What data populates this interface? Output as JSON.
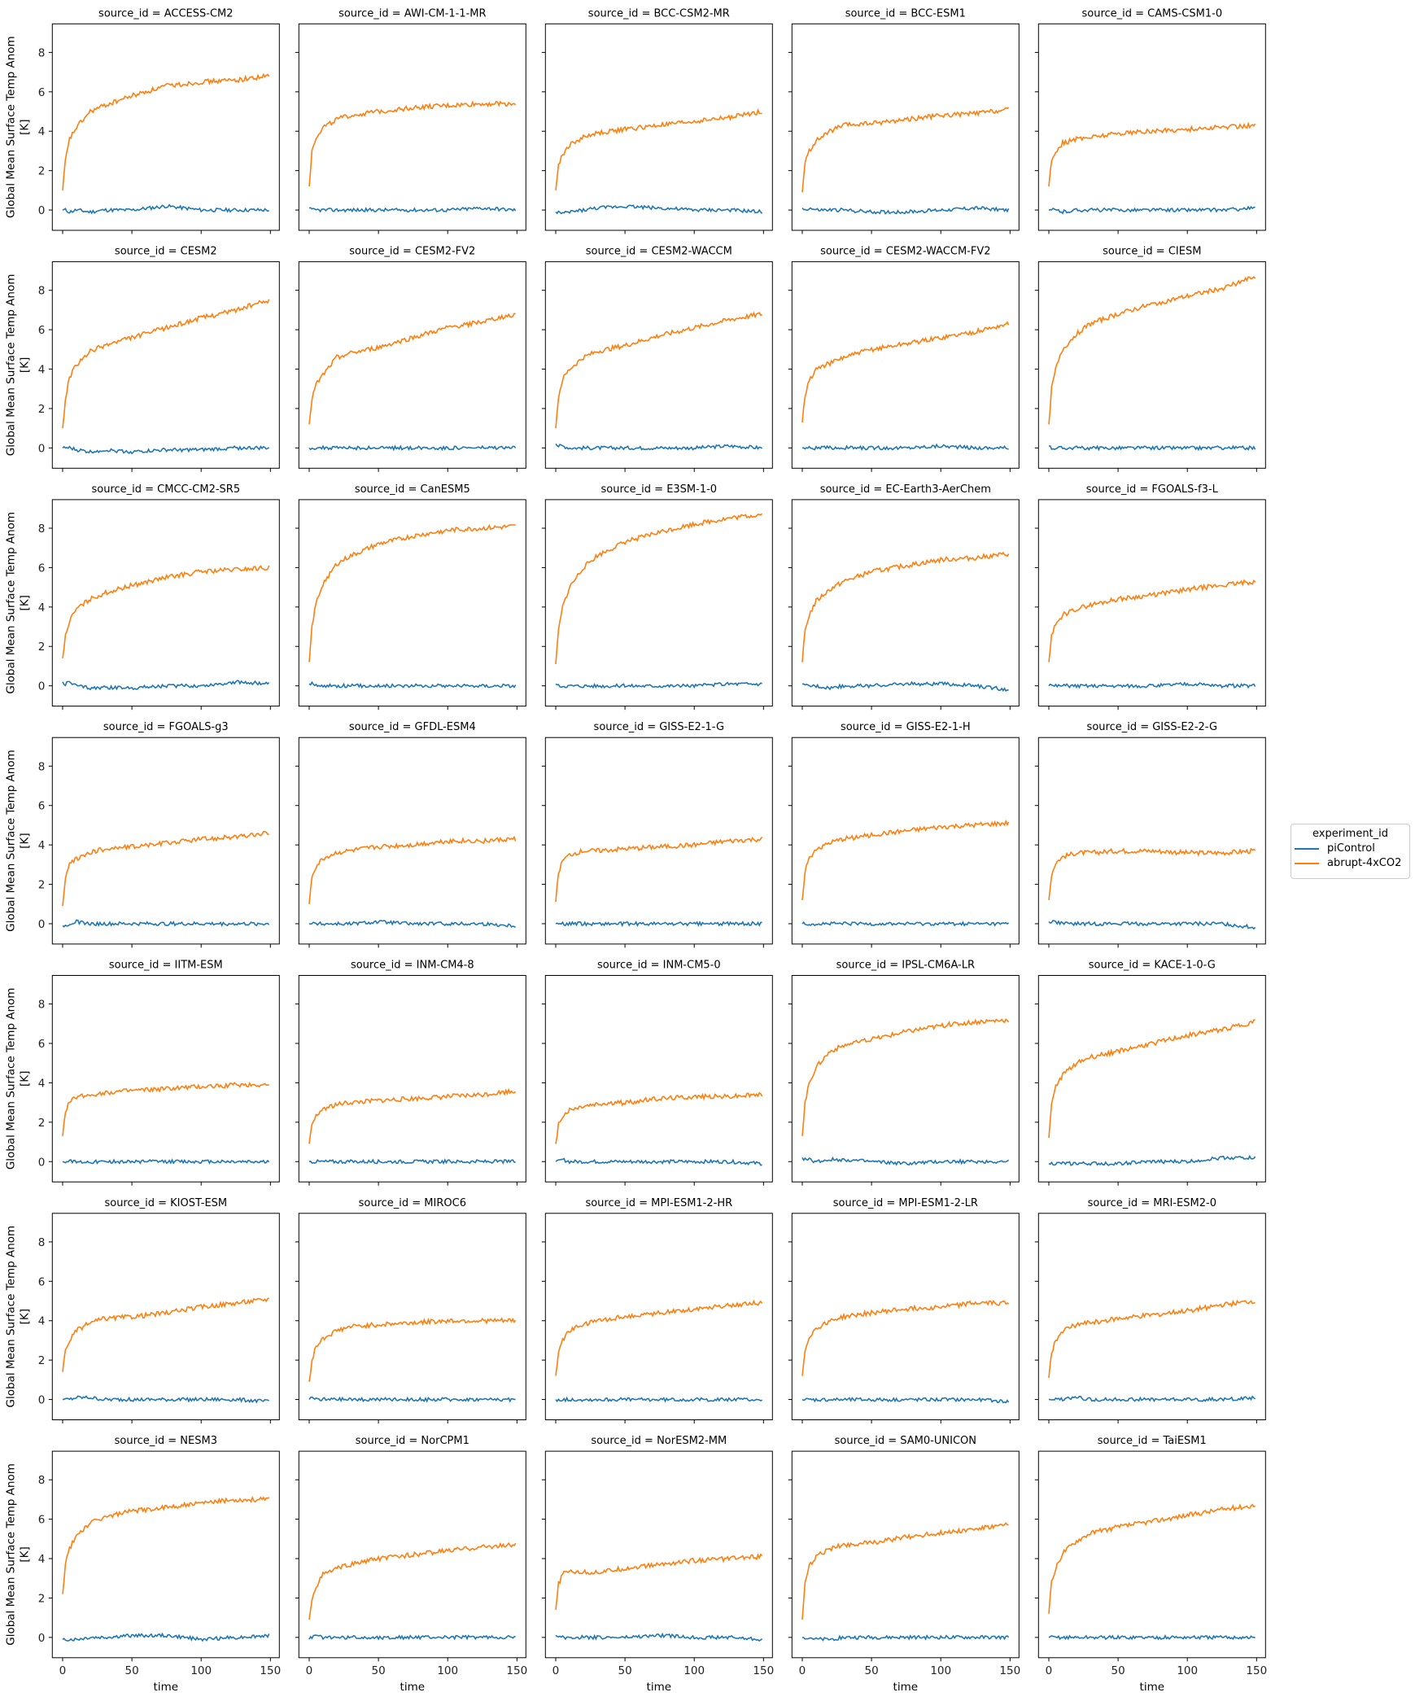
{
  "chart_data": {
    "type": "line",
    "layout": "facet-grid 7 rows x 5 columns, shared axes",
    "facet_label_prefix": "source_id = ",
    "xlabel": "time",
    "ylabel": "Global Mean Surface Temp Anom\n[K]",
    "xlim": [
      -7.45,
      156.45
    ],
    "ylim": [
      -1.03,
      9.45
    ],
    "xticks": [
      0,
      50,
      100,
      150
    ],
    "yticks": [
      0,
      2,
      4,
      6,
      8
    ],
    "grid": false,
    "legend": {
      "title": "experiment_id",
      "placement": "right",
      "entries": [
        "piControl",
        "abrupt-4xCO2"
      ]
    },
    "colors": {
      "piControl": "#1f77b4",
      "abrupt-4xCO2": "#ff7f0e"
    },
    "x": [
      0,
      2,
      5,
      10,
      20,
      30,
      50,
      75,
      100,
      125,
      149
    ],
    "panels": [
      {
        "source_id": "ACCESS-CM2",
        "abrupt-4xCO2": [
          1.0,
          2.5,
          3.6,
          4.2,
          5.0,
          5.3,
          5.8,
          6.3,
          6.5,
          6.6,
          6.8
        ],
        "piControl": [
          0,
          0,
          -0.1,
          0,
          -0.1,
          0,
          0,
          0.2,
          0,
          0,
          0
        ]
      },
      {
        "source_id": "AWI-CM-1-1-MR",
        "abrupt-4xCO2": [
          1.2,
          3.0,
          3.7,
          4.2,
          4.6,
          4.8,
          5.0,
          5.2,
          5.3,
          5.4,
          5.4
        ],
        "piControl": [
          0.1,
          0,
          0,
          0,
          0,
          0,
          0,
          0,
          0,
          0.1,
          0
        ]
      },
      {
        "source_id": "BCC-CSM2-MR",
        "abrupt-4xCO2": [
          1.0,
          2.3,
          2.8,
          3.3,
          3.7,
          3.9,
          4.1,
          4.3,
          4.5,
          4.7,
          5.0
        ],
        "piControl": [
          -0.1,
          -0.1,
          -0.2,
          -0.1,
          0,
          0.1,
          0.2,
          0.1,
          0,
          0,
          -0.1
        ]
      },
      {
        "source_id": "BCC-ESM1",
        "abrupt-4xCO2": [
          0.9,
          2.4,
          3.0,
          3.5,
          4.0,
          4.3,
          4.4,
          4.6,
          4.8,
          4.9,
          5.1
        ],
        "piControl": [
          0.1,
          0,
          0.1,
          0,
          0,
          0,
          -0.1,
          -0.1,
          0,
          0.1,
          0
        ]
      },
      {
        "source_id": "CAMS-CSM1-0",
        "abrupt-4xCO2": [
          1.2,
          2.5,
          3.0,
          3.4,
          3.6,
          3.7,
          3.9,
          4.0,
          4.1,
          4.2,
          4.3
        ],
        "piControl": [
          0,
          0,
          0,
          -0.1,
          0,
          0,
          0,
          0,
          0,
          0,
          0.1
        ]
      },
      {
        "source_id": "CESM2",
        "abrupt-4xCO2": [
          1.0,
          2.5,
          3.6,
          4.2,
          4.9,
          5.2,
          5.6,
          6.1,
          6.6,
          7.0,
          7.5
        ],
        "piControl": [
          0,
          0,
          0,
          -0.1,
          -0.2,
          -0.1,
          -0.2,
          -0.1,
          -0.1,
          0,
          0
        ]
      },
      {
        "source_id": "CESM2-FV2",
        "abrupt-4xCO2": [
          1.2,
          2.5,
          3.2,
          3.7,
          4.6,
          4.8,
          5.1,
          5.6,
          6.1,
          6.4,
          6.8
        ],
        "piControl": [
          0,
          0,
          0,
          0,
          0,
          0,
          0,
          0,
          0,
          0,
          0
        ]
      },
      {
        "source_id": "CESM2-WACCM",
        "abrupt-4xCO2": [
          1.0,
          2.6,
          3.5,
          4.0,
          4.6,
          4.9,
          5.2,
          5.7,
          6.1,
          6.5,
          6.8
        ],
        "piControl": [
          0.2,
          0.1,
          0.1,
          0,
          0,
          0,
          0,
          0,
          0,
          0.1,
          0
        ]
      },
      {
        "source_id": "CESM2-WACCM-FV2",
        "abrupt-4xCO2": [
          1.3,
          2.7,
          3.4,
          4.0,
          4.3,
          4.6,
          5.0,
          5.3,
          5.6,
          5.9,
          6.3
        ],
        "piControl": [
          0,
          0,
          0,
          0,
          0,
          0,
          0,
          0,
          0.1,
          0,
          0
        ]
      },
      {
        "source_id": "CIESM",
        "abrupt-4xCO2": [
          1.2,
          3.0,
          4.0,
          5.0,
          5.8,
          6.3,
          6.8,
          7.3,
          7.7,
          8.1,
          8.7
        ],
        "piControl": [
          0.1,
          0,
          0,
          0,
          0,
          0,
          0,
          0,
          0,
          0,
          0
        ]
      },
      {
        "source_id": "CMCC-CM2-SR5",
        "abrupt-4xCO2": [
          1.4,
          2.5,
          3.3,
          3.9,
          4.4,
          4.7,
          5.1,
          5.5,
          5.8,
          5.9,
          6.0
        ],
        "piControl": [
          0.2,
          0.1,
          0.2,
          0,
          -0.1,
          -0.1,
          -0.1,
          0,
          0,
          0.2,
          0.1
        ]
      },
      {
        "source_id": "CanESM5",
        "abrupt-4xCO2": [
          1.2,
          3.0,
          4.2,
          5.2,
          6.2,
          6.6,
          7.2,
          7.6,
          7.9,
          8.0,
          8.1
        ],
        "piControl": [
          0.1,
          0.1,
          0,
          0,
          0,
          0,
          0,
          0,
          0,
          0,
          0
        ]
      },
      {
        "source_id": "E3SM-1-0",
        "abrupt-4xCO2": [
          1.1,
          2.8,
          4.0,
          5.0,
          6.0,
          6.6,
          7.3,
          7.8,
          8.2,
          8.5,
          8.7
        ],
        "piControl": [
          0.1,
          0,
          0,
          0,
          0,
          0,
          0,
          0,
          0,
          0.1,
          0.1
        ]
      },
      {
        "source_id": "EC-Earth3-AerChem",
        "abrupt-4xCO2": [
          1.2,
          2.8,
          3.6,
          4.3,
          4.9,
          5.3,
          5.8,
          6.1,
          6.4,
          6.5,
          6.7
        ],
        "piControl": [
          0.1,
          0,
          0,
          0,
          -0.1,
          0,
          0,
          0.1,
          0.1,
          0,
          -0.2
        ]
      },
      {
        "source_id": "FGOALS-f3-L",
        "abrupt-4xCO2": [
          1.2,
          2.6,
          3.1,
          3.6,
          3.9,
          4.1,
          4.4,
          4.6,
          4.9,
          5.1,
          5.3
        ],
        "piControl": [
          0,
          0,
          0,
          0,
          0,
          0,
          0,
          0,
          0.1,
          0,
          0
        ]
      },
      {
        "source_id": "FGOALS-g3",
        "abrupt-4xCO2": [
          0.9,
          2.3,
          3.0,
          3.3,
          3.6,
          3.8,
          3.9,
          4.1,
          4.3,
          4.4,
          4.6
        ],
        "piControl": [
          -0.1,
          -0.1,
          0,
          0.1,
          0,
          0,
          0,
          0,
          0,
          0,
          0
        ]
      },
      {
        "source_id": "GFDL-ESM4",
        "abrupt-4xCO2": [
          1.0,
          2.4,
          2.9,
          3.3,
          3.6,
          3.7,
          3.9,
          4.0,
          4.2,
          4.2,
          4.3
        ],
        "piControl": [
          0,
          0,
          0,
          0,
          0,
          0,
          0.1,
          0,
          0,
          0,
          -0.1
        ]
      },
      {
        "source_id": "GISS-E2-1-G",
        "abrupt-4xCO2": [
          1.1,
          2.6,
          3.2,
          3.5,
          3.7,
          3.7,
          3.8,
          3.9,
          4.0,
          4.2,
          4.3
        ],
        "piControl": [
          0,
          0,
          0,
          0,
          0,
          0,
          0,
          0,
          0,
          0,
          0
        ]
      },
      {
        "source_id": "GISS-E2-1-H",
        "abrupt-4xCO2": [
          1.2,
          2.7,
          3.3,
          3.8,
          4.1,
          4.3,
          4.5,
          4.7,
          4.9,
          5.0,
          5.1
        ],
        "piControl": [
          0,
          0,
          0,
          0,
          0,
          0,
          0,
          0,
          0,
          0,
          0
        ]
      },
      {
        "source_id": "GISS-E2-2-G",
        "abrupt-4xCO2": [
          1.2,
          2.5,
          3.1,
          3.4,
          3.6,
          3.6,
          3.7,
          3.7,
          3.6,
          3.6,
          3.7
        ],
        "piControl": [
          0.1,
          0.1,
          0.1,
          0,
          0,
          0,
          0,
          0,
          0,
          0,
          -0.2
        ]
      },
      {
        "source_id": "IITM-ESM",
        "abrupt-4xCO2": [
          1.3,
          2.6,
          3.0,
          3.3,
          3.4,
          3.5,
          3.6,
          3.7,
          3.8,
          3.9,
          3.9
        ],
        "piControl": [
          0,
          0,
          0,
          0,
          0,
          0,
          0,
          0,
          0,
          0,
          0
        ]
      },
      {
        "source_id": "INM-CM4-8",
        "abrupt-4xCO2": [
          0.9,
          1.8,
          2.3,
          2.7,
          2.9,
          3.0,
          3.1,
          3.2,
          3.3,
          3.4,
          3.6
        ],
        "piControl": [
          0,
          0,
          0,
          0,
          0,
          0,
          0,
          0,
          0,
          0,
          0
        ]
      },
      {
        "source_id": "INM-CM5-0",
        "abrupt-4xCO2": [
          0.9,
          1.9,
          2.3,
          2.6,
          2.8,
          2.9,
          3.0,
          3.2,
          3.3,
          3.3,
          3.4
        ],
        "piControl": [
          0,
          0,
          0.1,
          0,
          0,
          0,
          0,
          0,
          0,
          0,
          -0.1
        ]
      },
      {
        "source_id": "IPSL-CM6A-LR",
        "abrupt-4xCO2": [
          1.3,
          3.0,
          4.0,
          4.8,
          5.6,
          5.9,
          6.2,
          6.6,
          6.9,
          7.1,
          7.2
        ],
        "piControl": [
          0.2,
          0.1,
          0.1,
          0,
          0.1,
          0.1,
          0,
          -0.1,
          0,
          0,
          0
        ]
      },
      {
        "source_id": "KACE-1-0-G",
        "abrupt-4xCO2": [
          1.2,
          2.9,
          3.8,
          4.4,
          5.0,
          5.3,
          5.6,
          6.0,
          6.4,
          6.7,
          7.1
        ],
        "piControl": [
          -0.1,
          -0.1,
          -0.1,
          -0.1,
          -0.1,
          -0.1,
          -0.1,
          0,
          0,
          0.2,
          0.2
        ]
      },
      {
        "source_id": "KIOST-ESM",
        "abrupt-4xCO2": [
          1.4,
          2.5,
          3.0,
          3.5,
          3.9,
          4.1,
          4.2,
          4.4,
          4.7,
          4.9,
          5.1
        ],
        "piControl": [
          0,
          0,
          0,
          0.1,
          0.1,
          0,
          0,
          0,
          0,
          0,
          -0.1
        ]
      },
      {
        "source_id": "MIROC6",
        "abrupt-4xCO2": [
          0.9,
          2.0,
          2.7,
          3.1,
          3.5,
          3.7,
          3.8,
          3.9,
          4.0,
          4.0,
          4.0
        ],
        "piControl": [
          0,
          0.1,
          0,
          0,
          0,
          0,
          0,
          0,
          0,
          0,
          0
        ]
      },
      {
        "source_id": "MPI-ESM1-2-HR",
        "abrupt-4xCO2": [
          1.2,
          2.4,
          3.0,
          3.5,
          3.8,
          4.0,
          4.2,
          4.4,
          4.6,
          4.8,
          4.9
        ],
        "piControl": [
          0,
          0,
          0,
          0,
          0,
          0,
          0,
          0,
          0,
          0,
          0
        ]
      },
      {
        "source_id": "MPI-ESM1-2-LR",
        "abrupt-4xCO2": [
          1.2,
          2.5,
          3.2,
          3.6,
          4.0,
          4.2,
          4.4,
          4.6,
          4.7,
          4.9,
          4.9
        ],
        "piControl": [
          0,
          0,
          0,
          0,
          0,
          0,
          0,
          0,
          0,
          0,
          -0.1
        ]
      },
      {
        "source_id": "MRI-ESM2-0",
        "abrupt-4xCO2": [
          1.1,
          2.4,
          3.0,
          3.5,
          3.8,
          3.9,
          4.1,
          4.3,
          4.5,
          4.8,
          5.0
        ],
        "piControl": [
          0,
          0,
          0,
          0,
          0.1,
          0,
          0,
          0,
          0,
          0,
          0.1
        ]
      },
      {
        "source_id": "NESM3",
        "abrupt-4xCO2": [
          2.2,
          3.8,
          4.5,
          5.2,
          5.8,
          6.1,
          6.4,
          6.6,
          6.8,
          7.0,
          7.0
        ],
        "piControl": [
          -0.1,
          -0.1,
          -0.1,
          -0.1,
          0,
          0,
          0.1,
          0.1,
          -0.1,
          0,
          0.1
        ]
      },
      {
        "source_id": "NorCPM1",
        "abrupt-4xCO2": [
          0.9,
          2.0,
          2.6,
          3.2,
          3.5,
          3.7,
          4.0,
          4.2,
          4.4,
          4.6,
          4.7
        ],
        "piControl": [
          -0.1,
          0,
          0.1,
          0,
          0,
          0,
          0,
          0,
          0,
          0,
          0
        ]
      },
      {
        "source_id": "NorESM2-MM",
        "abrupt-4xCO2": [
          1.4,
          2.7,
          3.2,
          3.4,
          3.3,
          3.3,
          3.5,
          3.7,
          3.9,
          4.0,
          4.1
        ],
        "piControl": [
          0.1,
          0.1,
          0,
          0,
          0,
          0,
          0,
          0.1,
          0,
          0,
          -0.1
        ]
      },
      {
        "source_id": "SAM0-UNICON",
        "abrupt-4xCO2": [
          0.9,
          2.7,
          3.6,
          4.1,
          4.5,
          4.7,
          4.8,
          5.1,
          5.3,
          5.5,
          5.7
        ],
        "piControl": [
          0,
          0,
          0,
          -0.1,
          -0.1,
          0,
          0,
          0,
          0,
          0,
          0
        ]
      },
      {
        "source_id": "TaiESM1",
        "abrupt-4xCO2": [
          1.2,
          2.8,
          3.5,
          4.3,
          4.9,
          5.3,
          5.6,
          5.9,
          6.2,
          6.5,
          6.7
        ],
        "piControl": [
          0,
          0,
          0,
          0,
          0,
          0,
          0,
          0,
          0,
          0,
          0
        ]
      }
    ]
  }
}
